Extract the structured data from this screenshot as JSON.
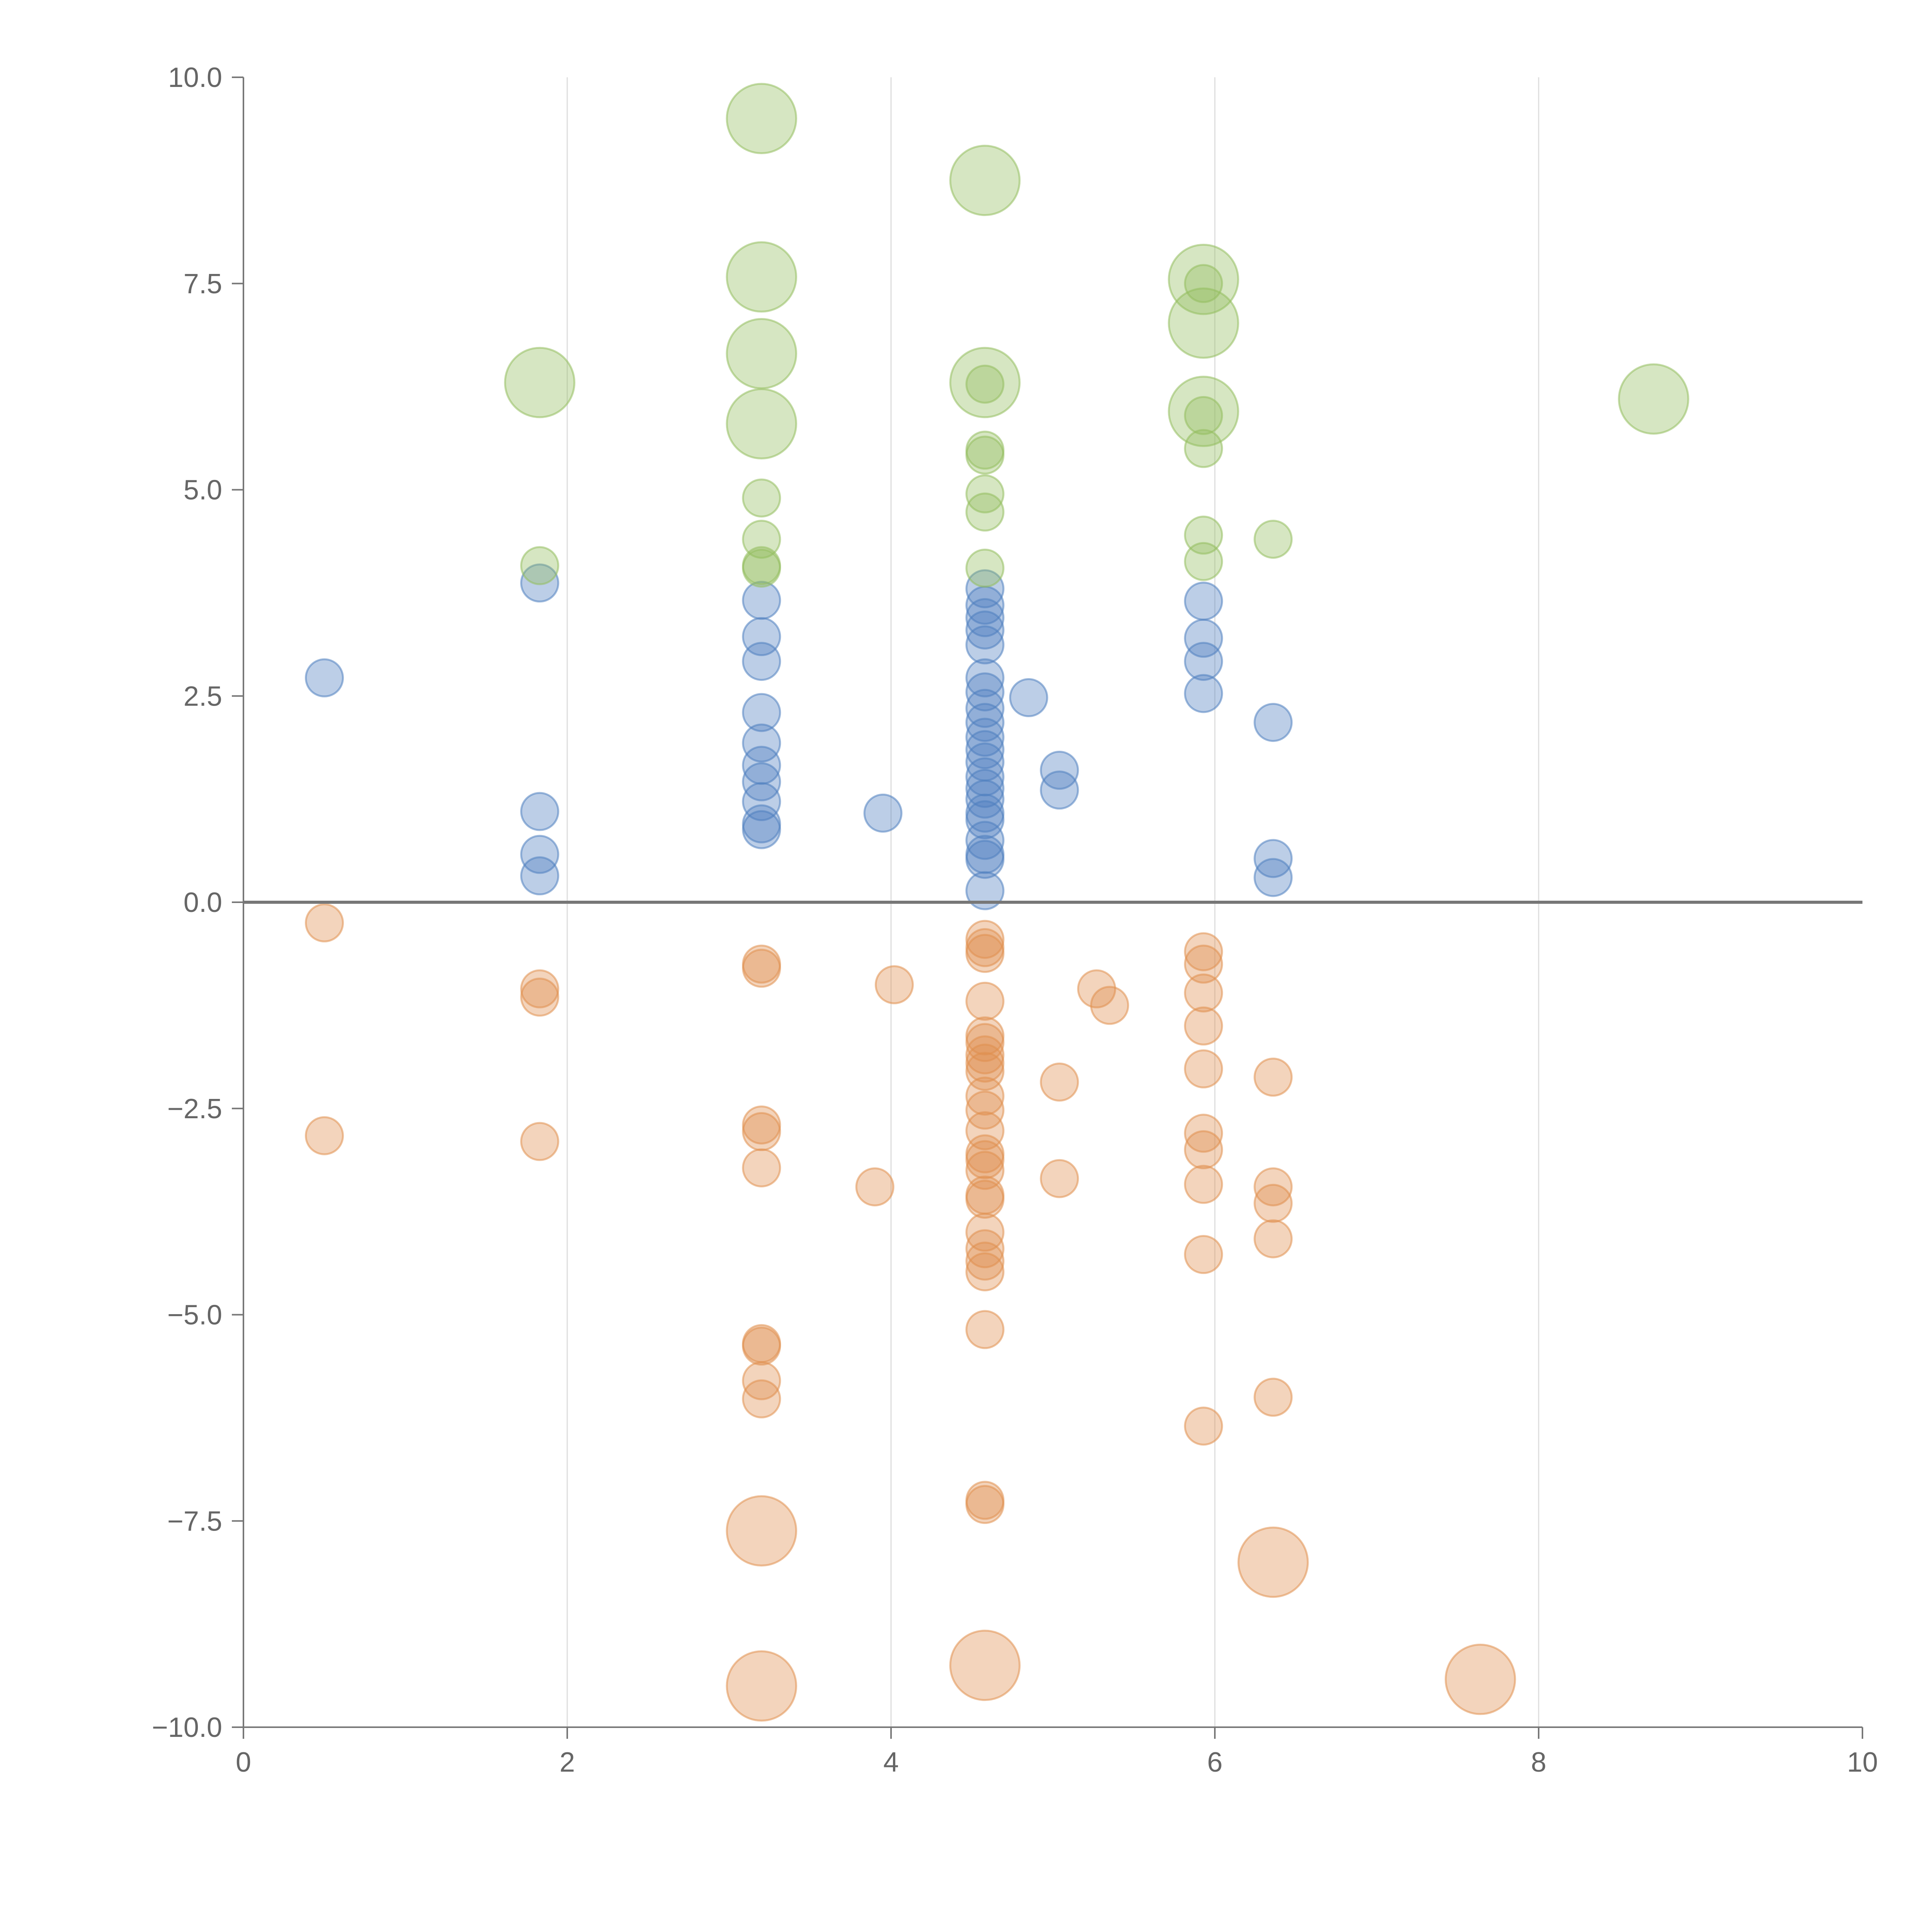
{
  "chart_data": {
    "type": "scatter",
    "title": "",
    "xlabel": "",
    "ylabel": "",
    "xlim": [
      0,
      10
    ],
    "ylim": [
      -10,
      10
    ],
    "xticks": [
      0,
      2,
      4,
      6,
      8,
      10
    ],
    "xtick_labels": [
      "0",
      "2",
      "4",
      "6",
      "8",
      "10"
    ],
    "yticks": [
      10,
      7.5,
      5,
      2.5,
      0,
      -2.5,
      -5,
      -7.5,
      -10
    ],
    "ytick_labels": [
      "10.0",
      "7.5",
      "5.0",
      "2.5",
      "0.0",
      "−2.5",
      "−5.0",
      "−7.5",
      "−10.0"
    ],
    "grid": "vertical",
    "legend": "none",
    "size_units": "relative bubble size (1 = small, ~2 = large)",
    "series": [
      {
        "name": "blue",
        "color": "#4f7fc0",
        "points": [
          [
            0.5,
            2.72,
            1
          ],
          [
            1.83,
            3.87,
            1
          ],
          [
            1.83,
            1.1,
            1
          ],
          [
            1.83,
            0.58,
            1
          ],
          [
            1.83,
            0.32,
            1
          ],
          [
            3.2,
            3.66,
            1
          ],
          [
            3.2,
            3.22,
            1
          ],
          [
            3.2,
            2.92,
            1
          ],
          [
            3.2,
            2.3,
            1
          ],
          [
            3.2,
            1.93,
            1
          ],
          [
            3.2,
            1.66,
            1
          ],
          [
            3.2,
            1.46,
            1
          ],
          [
            3.2,
            1.22,
            1
          ],
          [
            3.2,
            0.95,
            1
          ],
          [
            3.2,
            0.88,
            1
          ],
          [
            3.95,
            1.08,
            1
          ],
          [
            4.58,
            3.8,
            1
          ],
          [
            4.58,
            3.6,
            1
          ],
          [
            4.58,
            3.45,
            1
          ],
          [
            4.58,
            3.3,
            1
          ],
          [
            4.58,
            3.12,
            1
          ],
          [
            4.58,
            2.72,
            1
          ],
          [
            4.58,
            2.55,
            1
          ],
          [
            4.58,
            2.35,
            1
          ],
          [
            4.58,
            2.18,
            1
          ],
          [
            4.58,
            2.0,
            1
          ],
          [
            4.58,
            1.85,
            1
          ],
          [
            4.58,
            1.7,
            1
          ],
          [
            4.58,
            1.52,
            1
          ],
          [
            4.58,
            1.38,
            1
          ],
          [
            4.58,
            1.25,
            1
          ],
          [
            4.58,
            1.08,
            1
          ],
          [
            4.58,
            1.0,
            1
          ],
          [
            4.58,
            0.75,
            1
          ],
          [
            4.58,
            0.58,
            1
          ],
          [
            4.58,
            0.52,
            1
          ],
          [
            4.58,
            0.14,
            1
          ],
          [
            4.85,
            2.48,
            1
          ],
          [
            5.04,
            1.6,
            1
          ],
          [
            5.04,
            1.36,
            1
          ],
          [
            5.93,
            3.65,
            1
          ],
          [
            5.93,
            3.2,
            1
          ],
          [
            5.93,
            2.92,
            1
          ],
          [
            5.93,
            2.53,
            1
          ],
          [
            6.36,
            2.18,
            1
          ],
          [
            6.36,
            0.53,
            1
          ],
          [
            6.36,
            0.3,
            1
          ]
        ]
      },
      {
        "name": "orange",
        "color": "#e08f4e",
        "points": [
          [
            0.5,
            -0.25,
            1
          ],
          [
            0.5,
            -2.83,
            1
          ],
          [
            1.83,
            -1.05,
            1
          ],
          [
            1.83,
            -1.15,
            1
          ],
          [
            1.83,
            -2.9,
            1
          ],
          [
            3.2,
            -0.75,
            1
          ],
          [
            3.2,
            -0.8,
            1
          ],
          [
            3.2,
            -2.7,
            1
          ],
          [
            3.2,
            -2.78,
            1
          ],
          [
            3.2,
            -3.22,
            1
          ],
          [
            3.2,
            -5.35,
            1
          ],
          [
            3.2,
            -5.38,
            1
          ],
          [
            3.2,
            -5.8,
            1
          ],
          [
            3.2,
            -6.02,
            1
          ],
          [
            3.2,
            -7.62,
            2
          ],
          [
            3.2,
            -9.5,
            2
          ],
          [
            3.9,
            -3.45,
            1
          ],
          [
            4.02,
            -1.0,
            1
          ],
          [
            4.58,
            -0.45,
            1
          ],
          [
            4.58,
            -0.55,
            1
          ],
          [
            4.58,
            -0.62,
            1
          ],
          [
            4.58,
            -1.2,
            1
          ],
          [
            4.58,
            -1.62,
            1
          ],
          [
            4.58,
            -1.7,
            1
          ],
          [
            4.58,
            -1.85,
            1
          ],
          [
            4.58,
            -1.95,
            1
          ],
          [
            4.58,
            -2.05,
            1
          ],
          [
            4.58,
            -2.35,
            1
          ],
          [
            4.58,
            -2.52,
            1
          ],
          [
            4.58,
            -2.77,
            1
          ],
          [
            4.58,
            -3.05,
            1
          ],
          [
            4.58,
            -3.12,
            1
          ],
          [
            4.58,
            -3.25,
            1
          ],
          [
            4.58,
            -3.55,
            1
          ],
          [
            4.58,
            -3.6,
            1
          ],
          [
            4.58,
            -4.0,
            1
          ],
          [
            4.58,
            -4.2,
            1
          ],
          [
            4.58,
            -4.35,
            1
          ],
          [
            4.58,
            -4.48,
            1
          ],
          [
            4.58,
            -5.18,
            1
          ],
          [
            4.58,
            -7.25,
            1
          ],
          [
            4.58,
            -7.3,
            1
          ],
          [
            4.58,
            -9.25,
            2
          ],
          [
            5.04,
            -2.18,
            1
          ],
          [
            5.04,
            -3.35,
            1
          ],
          [
            5.27,
            -1.05,
            1
          ],
          [
            5.35,
            -1.25,
            1
          ],
          [
            5.93,
            -0.6,
            1
          ],
          [
            5.93,
            -0.75,
            1
          ],
          [
            5.93,
            -1.1,
            1
          ],
          [
            5.93,
            -1.5,
            1
          ],
          [
            5.93,
            -2.02,
            1
          ],
          [
            5.93,
            -2.8,
            1
          ],
          [
            5.93,
            -3.0,
            1
          ],
          [
            5.93,
            -3.42,
            1
          ],
          [
            5.93,
            -4.27,
            1
          ],
          [
            5.93,
            -6.35,
            1
          ],
          [
            6.36,
            -2.12,
            1
          ],
          [
            6.36,
            -3.45,
            1
          ],
          [
            6.36,
            -3.65,
            1
          ],
          [
            6.36,
            -4.08,
            1
          ],
          [
            6.36,
            -6.0,
            1
          ],
          [
            6.36,
            -8.0,
            2
          ],
          [
            7.64,
            -9.42,
            2
          ]
        ]
      },
      {
        "name": "green",
        "color": "#94bd5e",
        "points": [
          [
            1.83,
            6.3,
            2
          ],
          [
            1.83,
            4.08,
            1
          ],
          [
            3.2,
            9.5,
            2
          ],
          [
            3.2,
            7.58,
            2
          ],
          [
            3.2,
            6.65,
            2
          ],
          [
            3.2,
            5.8,
            2
          ],
          [
            3.2,
            4.9,
            1
          ],
          [
            3.2,
            4.4,
            1
          ],
          [
            3.2,
            4.08,
            1
          ],
          [
            3.2,
            4.05,
            1
          ],
          [
            4.58,
            8.75,
            2
          ],
          [
            4.58,
            6.3,
            2
          ],
          [
            4.58,
            6.28,
            1
          ],
          [
            4.58,
            5.48,
            1
          ],
          [
            4.58,
            5.42,
            1
          ],
          [
            4.58,
            4.95,
            1
          ],
          [
            4.58,
            4.73,
            1
          ],
          [
            4.58,
            4.05,
            1
          ],
          [
            5.93,
            7.55,
            2
          ],
          [
            5.93,
            7.02,
            2
          ],
          [
            5.93,
            5.95,
            2
          ],
          [
            5.93,
            7.5,
            1
          ],
          [
            5.93,
            5.9,
            1
          ],
          [
            5.93,
            5.5,
            1
          ],
          [
            5.93,
            4.45,
            1
          ],
          [
            5.93,
            4.13,
            1
          ],
          [
            6.36,
            4.4,
            1
          ],
          [
            8.71,
            6.1,
            2
          ]
        ]
      }
    ]
  }
}
